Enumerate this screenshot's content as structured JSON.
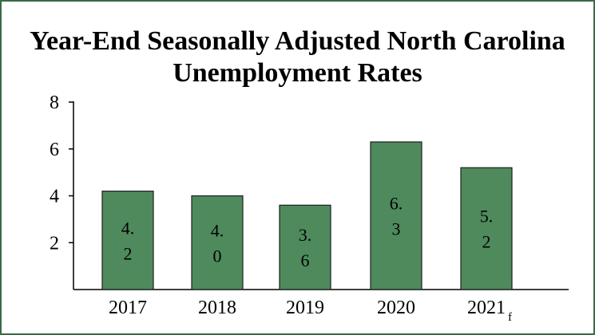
{
  "chart_data": {
    "type": "bar",
    "title_lines": [
      "Year-End Seasonally Adjusted North Carolina",
      "Unemployment Rates"
    ],
    "categories": [
      {
        "label": "2017",
        "sub": ""
      },
      {
        "label": "2018",
        "sub": ""
      },
      {
        "label": "2019",
        "sub": ""
      },
      {
        "label": "2020",
        "sub": ""
      },
      {
        "label": "2021",
        "sub": "f"
      }
    ],
    "values": [
      4.2,
      4.0,
      3.6,
      6.3,
      5.2
    ],
    "data_labels": [
      [
        "4.",
        "2"
      ],
      [
        "4.",
        "0"
      ],
      [
        "3.",
        "6"
      ],
      [
        "6.",
        "3"
      ],
      [
        "5.",
        "2"
      ]
    ],
    "y_ticks": [
      "2",
      "4",
      "6",
      "8"
    ],
    "y_tick_values": [
      2,
      4,
      6,
      8
    ],
    "ylim": [
      0,
      8
    ],
    "grid": false,
    "legend": "none",
    "colors": {
      "bar_fill": "#4e8a5c",
      "bar_stroke": "#1f1f1f",
      "frame": "#3b6b45",
      "axis": "#000000"
    }
  }
}
